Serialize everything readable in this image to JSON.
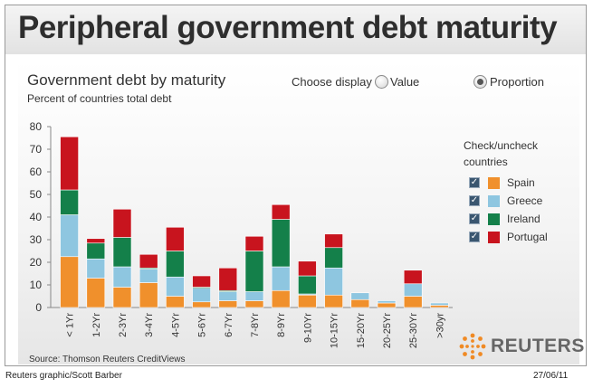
{
  "header": {
    "title": "Peripheral government debt maturity"
  },
  "controls": {
    "choose_display_label": "Choose display",
    "options": [
      "Value",
      "Proportion"
    ],
    "selected": "Proportion"
  },
  "legend": {
    "title": "Check/uncheck countries"
  },
  "source": "Source: Thomson Reuters CreditViews",
  "credit": "Reuters graphic/Scott Barber",
  "date": "27/06/11",
  "logo_text": "REUTERS",
  "colors": {
    "Spain": "#f0902c",
    "Greece": "#8ec6e0",
    "Ireland": "#14804a",
    "Portugal": "#c8141e"
  },
  "chart_data": {
    "type": "bar",
    "stacked": true,
    "title": "Government debt by maturity",
    "subtitle": "Percent of countries total debt",
    "ylim": [
      0,
      80
    ],
    "yticks": [
      0,
      10,
      20,
      30,
      40,
      50,
      60,
      70,
      80
    ],
    "categories": [
      "< 1Yr",
      "1-2Yr",
      "2-3Yr",
      "3-4Yr",
      "4-5Yr",
      "5-6Yr",
      "6-7Yr",
      "7-8Yr",
      "8-9Yr",
      "9-10Yr",
      "10-15Yr",
      "15-20Yr",
      "20-25Yr",
      "25-30Yr",
      ">30yr"
    ],
    "series": [
      {
        "name": "Spain",
        "values": [
          22.5,
          13,
          9,
          11,
          5,
          2.5,
          3,
          3,
          7.5,
          5.5,
          5.5,
          3.5,
          2,
          5,
          1
        ]
      },
      {
        "name": "Greece",
        "values": [
          18.5,
          8.5,
          9,
          6,
          8.5,
          6,
          4,
          4,
          10.5,
          0.5,
          12,
          3,
          1,
          5.5,
          1
        ]
      },
      {
        "name": "Ireland",
        "values": [
          11,
          7,
          13,
          0.5,
          11.5,
          0.5,
          0.5,
          18,
          21,
          8,
          9,
          0,
          0,
          0,
          0
        ]
      },
      {
        "name": "Portugal",
        "values": [
          23.5,
          2,
          12.5,
          6,
          10.5,
          5,
          10,
          6.5,
          6.5,
          6.5,
          6,
          0,
          0,
          6,
          0
        ]
      }
    ]
  }
}
